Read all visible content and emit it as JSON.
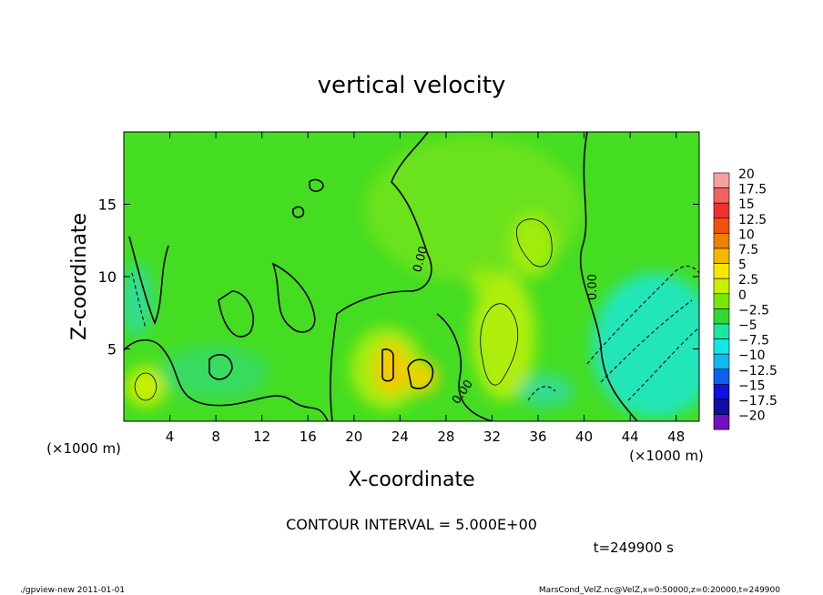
{
  "chart_data": {
    "type": "heatmap",
    "title": "vertical velocity",
    "xlabel": "X-coordinate",
    "ylabel": "Z-coordinate",
    "x_unit_note": "(×1000 m)",
    "y_unit_note": "(×1000 m)",
    "x_ticks": [
      4,
      8,
      12,
      16,
      20,
      24,
      28,
      32,
      36,
      40,
      44,
      48
    ],
    "y_ticks": [
      5,
      10,
      15
    ],
    "xlim": [
      0,
      50
    ],
    "ylim": [
      0,
      20
    ],
    "colorbar": {
      "labels": [
        "20",
        "17.5",
        "15",
        "12.5",
        "10",
        "7.5",
        "5",
        "2.5",
        "0",
        "−2.5",
        "−5",
        "−7.5",
        "−10",
        "−12.5",
        "−15",
        "−17.5",
        "−20"
      ],
      "colors": [
        "#f7a0a0",
        "#f36060",
        "#f03030",
        "#f05010",
        "#f08000",
        "#f5b800",
        "#f5e800",
        "#c8f000",
        "#78e800",
        "#30d830",
        "#18e8a0",
        "#10e8e8",
        "#10b8f0",
        "#1060f0",
        "#1010e0",
        "#1010a0",
        "#7010c0"
      ]
    },
    "contour_labels": [
      "0.00",
      "0.00",
      "0.00"
    ],
    "contour_interval_text": "CONTOUR INTERVAL = 5.000E+00",
    "time_text": "t=249900 s",
    "footer_left": "./gpview-new  2011-01-01",
    "footer_right": "MarsCond_VelZ.nc@VelZ,x=0:50000,z=0:20000,t=249900"
  }
}
